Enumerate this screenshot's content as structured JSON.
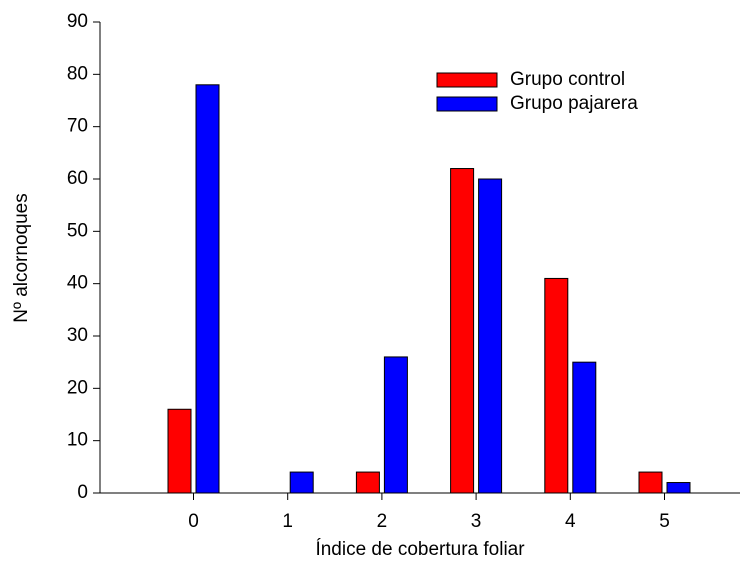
{
  "chart_data": {
    "type": "bar",
    "x_label": "Índice de cobertura foliar",
    "y_label": "Nº alcornoques",
    "categories": [
      "0",
      "1",
      "2",
      "3",
      "4",
      "5"
    ],
    "series": [
      {
        "name": "Grupo control",
        "color": "#ff0000",
        "values": [
          16,
          0,
          4,
          62,
          41,
          4
        ]
      },
      {
        "name": "Grupo pajarera",
        "color": "#0000ff",
        "values": [
          78,
          4,
          26,
          60,
          25,
          2
        ]
      }
    ],
    "ylim": [
      0,
      90
    ],
    "yticks": [
      0,
      10,
      20,
      30,
      40,
      50,
      60,
      70,
      80,
      90
    ],
    "legend": "top-right",
    "grid": false
  }
}
